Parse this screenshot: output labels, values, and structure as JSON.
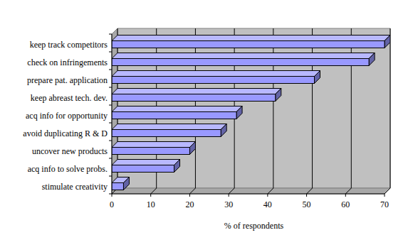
{
  "chart_data": {
    "type": "bar",
    "orientation": "horizontal",
    "categories": [
      "keep track competitors",
      "check on infringements",
      "prepare pat. application",
      "keep abreast tech. dev.",
      "acq info for opportunity",
      "avoid duplicating R & D",
      "uncover new products",
      "acq info to solve probs.",
      "stimulate creativity"
    ],
    "values": [
      70,
      66,
      52,
      42,
      32,
      28,
      20,
      16,
      3
    ],
    "color": "#9999ff",
    "xlabel": "% of respondents",
    "xlim": [
      0,
      70
    ],
    "xticks": [
      0,
      10,
      20,
      30,
      40,
      50,
      60,
      70
    ],
    "grid": true
  }
}
